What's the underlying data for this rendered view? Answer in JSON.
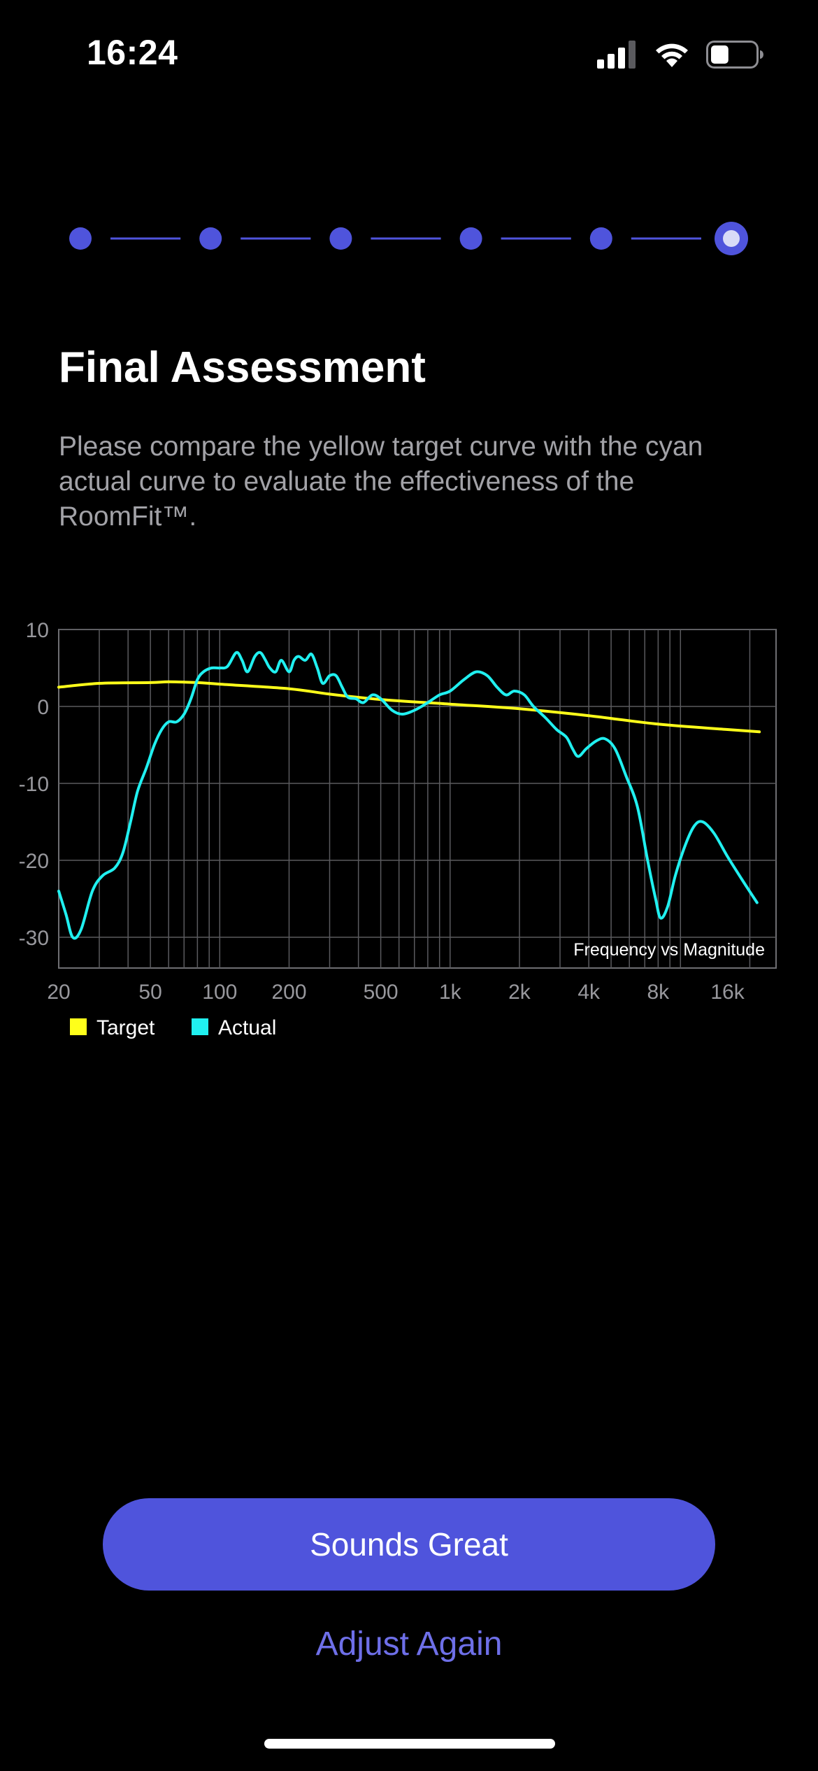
{
  "status_bar": {
    "time": "16:24",
    "signal_icon": "cellular-signal-icon",
    "wifi_icon": "wifi-icon",
    "battery_icon": "battery-icon",
    "battery_level": 0.4
  },
  "stepper": {
    "total_steps": 6,
    "current_step": 6,
    "accent_color": "#4f54dc"
  },
  "page": {
    "title": "Final Assessment",
    "description": "Please compare the yellow target curve with the cyan actual curve to evaluate the effectiveness of the RoomFit™."
  },
  "chart_data": {
    "type": "line",
    "title": "Frequency vs Magnitude",
    "xlabel": "",
    "ylabel": "",
    "x_scale": "log",
    "xlim": [
      20,
      26000
    ],
    "ylim": [
      -34,
      10
    ],
    "x_ticks": [
      {
        "value": 20,
        "label": "20"
      },
      {
        "value": 50,
        "label": "50"
      },
      {
        "value": 100,
        "label": "100"
      },
      {
        "value": 200,
        "label": "200"
      },
      {
        "value": 500,
        "label": "500"
      },
      {
        "value": 1000,
        "label": "1k"
      },
      {
        "value": 2000,
        "label": "2k"
      },
      {
        "value": 4000,
        "label": "4k"
      },
      {
        "value": 8000,
        "label": "8k"
      },
      {
        "value": 16000,
        "label": "16k"
      }
    ],
    "y_ticks": [
      {
        "value": 10,
        "label": "10"
      },
      {
        "value": 0,
        "label": "0"
      },
      {
        "value": -10,
        "label": "-10"
      },
      {
        "value": -20,
        "label": "-20"
      },
      {
        "value": -30,
        "label": "-30"
      }
    ],
    "grid": true,
    "legend_position": "bottom-left",
    "series": [
      {
        "name": "Target",
        "color": "#ffff1a",
        "points": [
          [
            20,
            2.5
          ],
          [
            30,
            3.0
          ],
          [
            50,
            3.1
          ],
          [
            60,
            3.2
          ],
          [
            80,
            3.1
          ],
          [
            100,
            2.9
          ],
          [
            200,
            2.3
          ],
          [
            300,
            1.6
          ],
          [
            500,
            0.9
          ],
          [
            1000,
            0.3
          ],
          [
            2000,
            -0.3
          ],
          [
            4000,
            -1.2
          ],
          [
            8000,
            -2.3
          ],
          [
            16000,
            -3.0
          ],
          [
            22000,
            -3.3
          ]
        ]
      },
      {
        "name": "Actual",
        "color": "#20f0f0",
        "points": [
          [
            20,
            -24
          ],
          [
            21.5,
            -27
          ],
          [
            23,
            -30
          ],
          [
            25,
            -29
          ],
          [
            28,
            -24
          ],
          [
            31,
            -22
          ],
          [
            35,
            -21
          ],
          [
            38,
            -19
          ],
          [
            41,
            -15
          ],
          [
            44,
            -11
          ],
          [
            48,
            -8
          ],
          [
            52,
            -5
          ],
          [
            56,
            -3
          ],
          [
            60,
            -2
          ],
          [
            65,
            -2
          ],
          [
            70,
            -1
          ],
          [
            75,
            1
          ],
          [
            80,
            3.5
          ],
          [
            85,
            4.5
          ],
          [
            92,
            5
          ],
          [
            100,
            5
          ],
          [
            108,
            5.2
          ],
          [
            118,
            7
          ],
          [
            125,
            6
          ],
          [
            132,
            4.5
          ],
          [
            142,
            6.5
          ],
          [
            150,
            7
          ],
          [
            158,
            6
          ],
          [
            165,
            5
          ],
          [
            175,
            4.5
          ],
          [
            185,
            6
          ],
          [
            200,
            4.5
          ],
          [
            210,
            6
          ],
          [
            220,
            6.5
          ],
          [
            235,
            6
          ],
          [
            250,
            6.8
          ],
          [
            265,
            5
          ],
          [
            280,
            3
          ],
          [
            300,
            4
          ],
          [
            320,
            4
          ],
          [
            340,
            2.5
          ],
          [
            360,
            1.2
          ],
          [
            390,
            1
          ],
          [
            420,
            0.5
          ],
          [
            460,
            1.5
          ],
          [
            500,
            1
          ],
          [
            560,
            -0.5
          ],
          [
            620,
            -1
          ],
          [
            700,
            -0.5
          ],
          [
            800,
            0.5
          ],
          [
            900,
            1.5
          ],
          [
            1000,
            2
          ],
          [
            1150,
            3.5
          ],
          [
            1300,
            4.5
          ],
          [
            1450,
            4
          ],
          [
            1600,
            2.5
          ],
          [
            1750,
            1.5
          ],
          [
            1900,
            2
          ],
          [
            2100,
            1.5
          ],
          [
            2300,
            0
          ],
          [
            2600,
            -1.5
          ],
          [
            2900,
            -3
          ],
          [
            3200,
            -4
          ],
          [
            3400,
            -5.5
          ],
          [
            3600,
            -6.5
          ],
          [
            3900,
            -5.5
          ],
          [
            4300,
            -4.5
          ],
          [
            4700,
            -4.2
          ],
          [
            5200,
            -5.5
          ],
          [
            5800,
            -9
          ],
          [
            6500,
            -13
          ],
          [
            7200,
            -20
          ],
          [
            7800,
            -25
          ],
          [
            8200,
            -27.5
          ],
          [
            8800,
            -26
          ],
          [
            9500,
            -22
          ],
          [
            10500,
            -18
          ],
          [
            11500,
            -15.5
          ],
          [
            12500,
            -15
          ],
          [
            14000,
            -16.5
          ],
          [
            16000,
            -19.5
          ],
          [
            18500,
            -22.5
          ],
          [
            21500,
            -25.5
          ]
        ]
      }
    ]
  },
  "buttons": {
    "primary_label": "Sounds Great",
    "secondary_label": "Adjust Again"
  }
}
